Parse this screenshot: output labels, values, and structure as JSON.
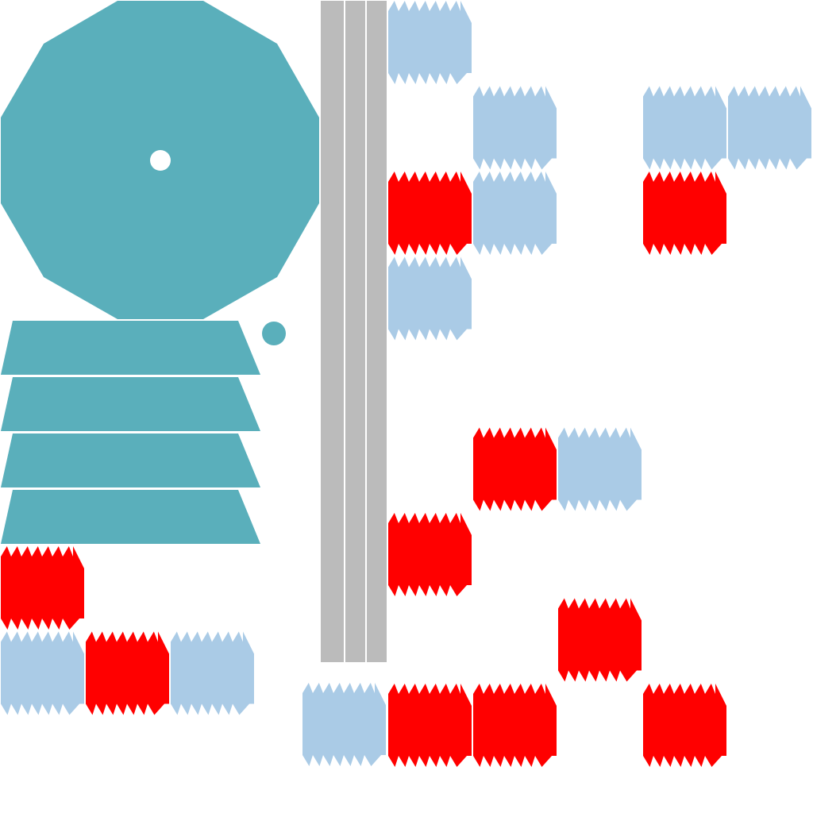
{
  "colors": {
    "background": "#ffffff",
    "tower": "#5aafbb",
    "rail": "#bbbbbb",
    "block_blue": "#aacbe6",
    "block_red": "#ff0000"
  },
  "tiles": [
    {
      "kind": "blue",
      "col": 0,
      "row": 0
    },
    {
      "kind": "blue",
      "col": 1,
      "row": 1
    },
    {
      "kind": "blue",
      "col": 3,
      "row": 1
    },
    {
      "kind": "blue",
      "col": 4,
      "row": 1
    },
    {
      "kind": "red",
      "col": 0,
      "row": 2
    },
    {
      "kind": "blue",
      "col": 1,
      "row": 2
    },
    {
      "kind": "red",
      "col": 3,
      "row": 2
    },
    {
      "kind": "blue",
      "col": 0,
      "row": 3
    },
    {
      "kind": "red",
      "col": 1,
      "row": 5
    },
    {
      "kind": "blue",
      "col": 2,
      "row": 5
    },
    {
      "kind": "red",
      "col": 0,
      "row": 6
    },
    {
      "kind": "red",
      "col": 2,
      "row": 7
    },
    {
      "kind": "red",
      "col": 0,
      "row": 8
    },
    {
      "kind": "red",
      "col": 1,
      "row": 8
    },
    {
      "kind": "red",
      "col": 3,
      "row": 8
    }
  ],
  "left_tiles": [
    {
      "kind": "red",
      "col": 0,
      "row": 0
    },
    {
      "kind": "blue",
      "col": 0,
      "row": 1
    },
    {
      "kind": "red",
      "col": 1,
      "row": 1
    },
    {
      "kind": "blue",
      "col": 2,
      "row": 1
    }
  ],
  "bottom_tile": {
    "kind": "blue"
  }
}
